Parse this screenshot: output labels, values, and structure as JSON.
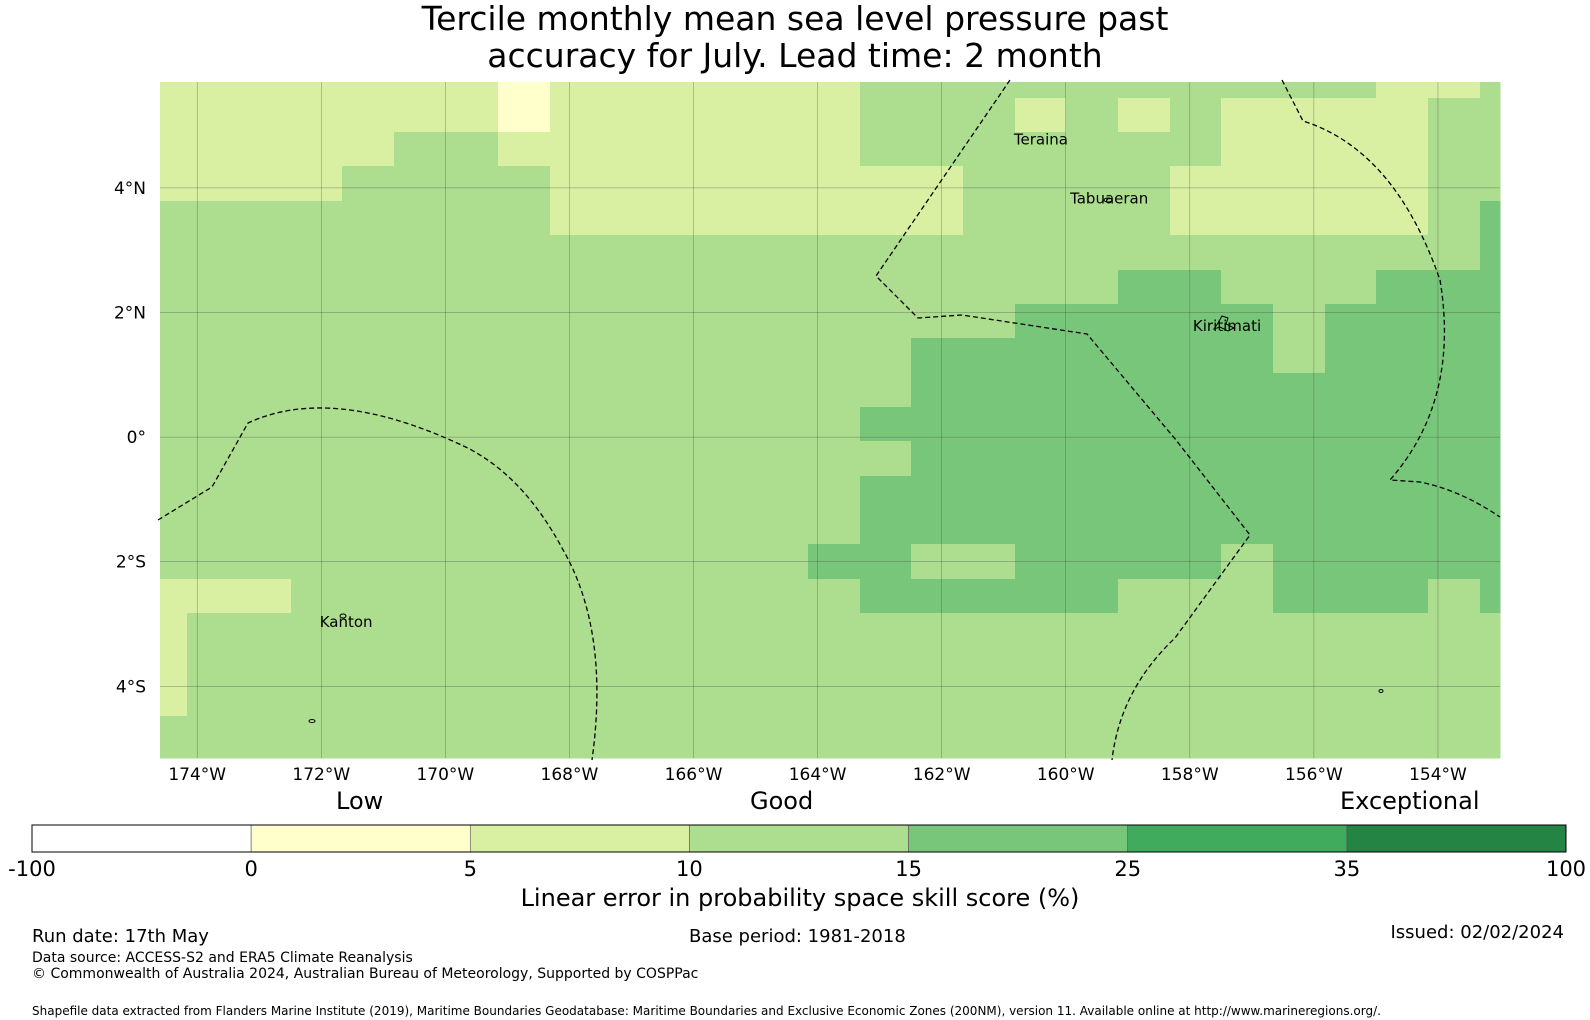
{
  "title": {
    "line1": "Tercile monthly mean sea level pressure past",
    "line2": "accuracy for July. Lead time: 2 month"
  },
  "map": {
    "lon_range": [
      -174.6,
      -153.0
    ],
    "lat_range": [
      -5.15,
      5.7
    ],
    "lat_ticks": [
      {
        "value": 4,
        "label": "4°N"
      },
      {
        "value": 2,
        "label": "2°N"
      },
      {
        "value": 0,
        "label": "0°"
      },
      {
        "value": -2,
        "label": "2°S"
      },
      {
        "value": -4,
        "label": "4°S"
      }
    ],
    "lon_ticks": [
      {
        "value": -174,
        "label": "174°W"
      },
      {
        "value": -172,
        "label": "172°W"
      },
      {
        "value": -170,
        "label": "170°W"
      },
      {
        "value": -168,
        "label": "168°W"
      },
      {
        "value": -166,
        "label": "166°W"
      },
      {
        "value": -164,
        "label": "164°W"
      },
      {
        "value": -162,
        "label": "162°W"
      },
      {
        "value": -160,
        "label": "160°W"
      },
      {
        "value": -158,
        "label": "158°W"
      },
      {
        "value": -156,
        "label": "156°W"
      },
      {
        "value": -154,
        "label": "154°W"
      }
    ],
    "places": [
      {
        "name": "Teraina",
        "lon": -160.4,
        "lat": 4.7
      },
      {
        "name": "Tabuaeran",
        "lon": -159.3,
        "lat": 3.75
      },
      {
        "name": "Kiritimati",
        "lon": -157.4,
        "lat": 1.7
      },
      {
        "name": "Kanton",
        "lon": -171.6,
        "lat": -3.05
      }
    ],
    "eez_boundary": "dashed",
    "colors": {
      "c0_5": "#ffffcc",
      "c5_10": "#d9f0a3",
      "c10_15": "#addd8e",
      "c15_25": "#78c679",
      "c25_35": "#41ab5d",
      "c35_100": "#238443",
      "neg": "#ffffff"
    }
  },
  "colorbar": {
    "ticks": [
      "-100",
      "0",
      "5",
      "10",
      "15",
      "25",
      "35",
      "100"
    ],
    "bins": [
      "#ffffff",
      "#ffffcc",
      "#d9f0a3",
      "#addd8e",
      "#78c679",
      "#41ab5d",
      "#238443"
    ],
    "categories": {
      "low": "Low",
      "good": "Good",
      "exceptional": "Exceptional"
    },
    "label": "Linear error in probability space skill score (%)"
  },
  "footer": {
    "run_date": "Run date: 17th May",
    "base_period": "Base period: 1981-2018",
    "issued": "Issued: 02/02/2024",
    "data_source": "Data source: ACCESS-S2 and ERA5 Climate Reanalysis",
    "copyright": "© Commonwealth of Australia 2024, Australian Bureau of Meteorology, Supported by COSPPac",
    "shapefile": "Shapefile data extracted from Flanders Marine Institute (2019), Maritime Boundaries Geodatabase: Maritime Boundaries and Exclusive Economic Zones (200NM), version 11. Available online at http://www.marineregions.org/."
  }
}
